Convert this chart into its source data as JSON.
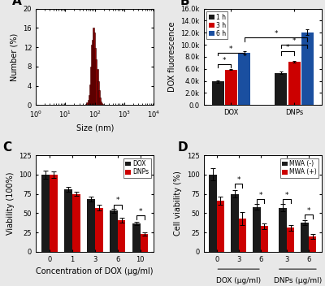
{
  "panel_A": {
    "hist_centers": [
      50,
      55,
      60,
      65,
      70,
      75,
      80,
      85,
      90,
      95,
      100,
      110,
      120,
      130,
      140,
      150,
      160,
      170,
      180,
      200
    ],
    "hist_values": [
      0.3,
      0.5,
      1.0,
      2.0,
      4.3,
      8.0,
      12.5,
      13.5,
      16.1,
      15.0,
      11.8,
      9.5,
      7.5,
      5.0,
      3.0,
      1.5,
      0.8,
      0.4,
      0.2,
      0.1
    ],
    "bar_color": "#8B0000",
    "edge_color": "#3a0000",
    "xlabel": "Size (nm)",
    "ylabel": "Number (%)",
    "ylim": [
      0,
      20
    ],
    "yticks": [
      0,
      4,
      8,
      12,
      16,
      20
    ],
    "xlim": [
      1,
      10000
    ]
  },
  "panel_B": {
    "groups": [
      "DOX",
      "DNPs"
    ],
    "times": [
      "1 h",
      "3 h",
      "6 h"
    ],
    "colors": [
      "#1a1a1a",
      "#cc0000",
      "#1a4fa0"
    ],
    "values": [
      [
        3900,
        5900,
        8700
      ],
      [
        5300,
        7200,
        12100
      ]
    ],
    "errors": [
      [
        200,
        100,
        250
      ],
      [
        200,
        180,
        450
      ]
    ],
    "ylabel": "DOX fluorescence",
    "ylim": [
      0,
      16000
    ],
    "ytick_labels": [
      "0.0",
      "2.0k",
      "4.0k",
      "6.0k",
      "8.0k",
      "10.0k",
      "12.0k",
      "14.0k",
      "16.0k"
    ]
  },
  "panel_C": {
    "dox_values": [
      100,
      81,
      68,
      53,
      37
    ],
    "dnp_values": [
      100,
      75,
      57,
      41,
      23
    ],
    "dox_errors": [
      5,
      3,
      3,
      3,
      2
    ],
    "dnp_errors": [
      4,
      3,
      4,
      3,
      2
    ],
    "colors": [
      "#1a1a1a",
      "#cc0000"
    ],
    "xlabel": "Concentration of DOX (μg/ml)",
    "ylabel": "Viability (100%)",
    "xlabels": [
      "0",
      "1",
      "3",
      "6",
      "10"
    ],
    "ylim": [
      0,
      125
    ],
    "yticks": [
      0,
      25,
      50,
      75,
      100,
      125
    ]
  },
  "panel_D": {
    "mwa_neg_values": [
      100,
      75,
      58,
      57,
      38
    ],
    "mwa_pos_values": [
      66,
      43,
      33,
      31,
      20
    ],
    "mwa_neg_errors": [
      8,
      5,
      4,
      5,
      3
    ],
    "mwa_pos_errors": [
      5,
      8,
      4,
      4,
      3
    ],
    "colors": [
      "#1a1a1a",
      "#cc0000"
    ],
    "ylabel": "Cell viability (%)",
    "xlabels": [
      "0",
      "3",
      "6",
      "3",
      "6"
    ],
    "ylim": [
      0,
      125
    ],
    "yticks": [
      0,
      25,
      50,
      75,
      100,
      125
    ]
  },
  "bg_color": "#e8e8e8",
  "label_fontsize": 7,
  "tick_fontsize": 6,
  "panel_label_fontsize": 11
}
